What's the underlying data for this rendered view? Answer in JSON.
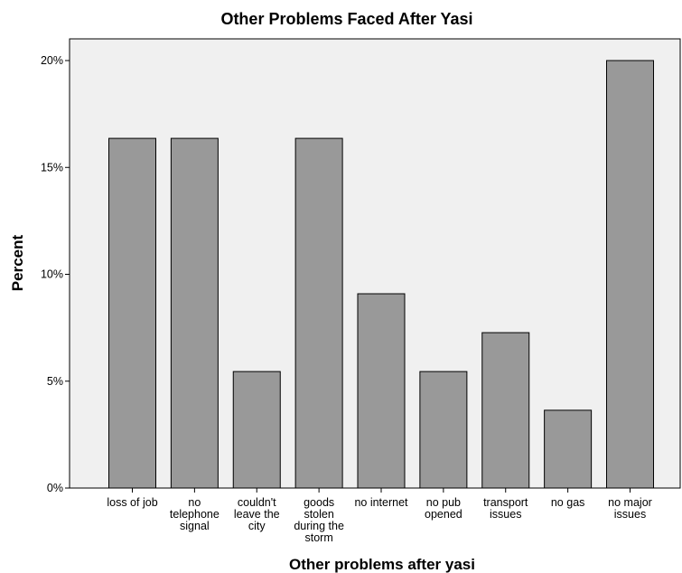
{
  "chart_data": {
    "type": "bar",
    "title": "Other Problems Faced After Yasi",
    "xlabel": "Other problems after yasi",
    "ylabel": "Percent",
    "categories": [
      "loss of job",
      "no telephone signal",
      "couldn't leave the city",
      "goods stolen during the storm",
      "no internet",
      "no pub opened",
      "transport issues",
      "no gas",
      "no major issues"
    ],
    "category_lines": [
      [
        "loss of job"
      ],
      [
        "no",
        "telephone",
        "signal"
      ],
      [
        "couldn't",
        "leave the",
        "city"
      ],
      [
        "goods",
        "stolen",
        "during the",
        "storm"
      ],
      [
        "no internet"
      ],
      [
        "no pub",
        "opened"
      ],
      [
        "transport",
        "issues"
      ],
      [
        "no gas"
      ],
      [
        "no major",
        "issues"
      ]
    ],
    "values": [
      16.36,
      16.36,
      5.45,
      16.36,
      9.09,
      5.45,
      7.27,
      3.64,
      20.0
    ],
    "ylim": [
      0,
      20.0
    ],
    "yticks": [
      0,
      5,
      10,
      15,
      20
    ],
    "ytick_labels": [
      "0%",
      "5%",
      "10%",
      "15%",
      "20%"
    ],
    "grid": false,
    "colors": {
      "plot_background": "#f0f0f0",
      "bar_fill": "#999999",
      "bar_stroke": "#000000"
    }
  }
}
